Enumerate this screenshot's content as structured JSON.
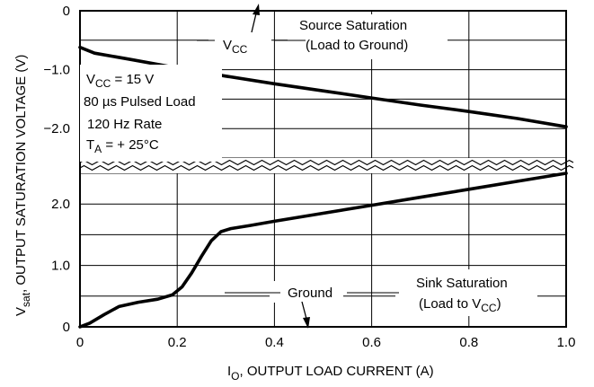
{
  "chart_data": {
    "type": "line",
    "xlabel": {
      "main": "I",
      "sub": "O",
      "rest": ", OUTPUT LOAD CURRENT (A)"
    },
    "ylabel": {
      "main": "V",
      "sub": "sat",
      "rest": ", OUTPUT SATURATION VOLTAGE (V)"
    },
    "xlim": [
      0,
      1.0
    ],
    "x_ticks": [
      "0",
      "0.2",
      "0.4",
      "0.6",
      "0.8",
      "1.0"
    ],
    "x_tick_values": [
      0,
      0.2,
      0.4,
      0.6,
      0.8,
      1.0
    ],
    "top_panel": {
      "ylim": [
        -2.5,
        0
      ],
      "y_ticks": [
        "0",
        "−1.0",
        "−2.0"
      ],
      "y_tick_values": [
        0,
        -1.0,
        -2.0
      ],
      "grid": true
    },
    "bottom_panel": {
      "ylim": [
        0,
        2.5
      ],
      "y_ticks": [
        "2.0",
        "1.0",
        "0"
      ],
      "y_tick_values": [
        2.0,
        1.0,
        0
      ],
      "grid": true
    },
    "series": [
      {
        "panel": "top",
        "x": [
          0,
          0.03,
          0.1,
          0.2,
          0.3,
          0.4,
          0.5,
          0.6,
          0.7,
          0.8,
          0.9,
          1.0
        ],
        "y": [
          -0.62,
          -0.72,
          -0.82,
          -0.97,
          -1.11,
          -1.24,
          -1.36,
          -1.48,
          -1.6,
          -1.71,
          -1.83,
          -1.97
        ]
      },
      {
        "panel": "bottom",
        "x": [
          0,
          0.02,
          0.05,
          0.08,
          0.12,
          0.16,
          0.19,
          0.21,
          0.23,
          0.25,
          0.27,
          0.29,
          0.31,
          0.35,
          0.4,
          0.5,
          0.6,
          0.7,
          0.8,
          0.9,
          1.0
        ],
        "y": [
          0,
          0.06,
          0.2,
          0.33,
          0.4,
          0.45,
          0.52,
          0.65,
          0.88,
          1.15,
          1.4,
          1.55,
          1.6,
          1.65,
          1.72,
          1.85,
          1.98,
          2.11,
          2.24,
          2.37,
          2.5
        ]
      }
    ],
    "annotations": {
      "vcc_arrow_label": {
        "main": "V",
        "sub": "CC"
      },
      "source_line1": "Source Saturation",
      "source_line2": "(Load to Ground)",
      "cond_line1_main": "V",
      "cond_line1_sub": "CC",
      "cond_line1_rest": " = 15 V",
      "cond_line2": "80 µs Pulsed Load",
      "cond_line3": "120 Hz Rate",
      "cond_line4_main": "T",
      "cond_line4_sub": "A",
      "cond_line4_rest": " = + 25°C",
      "ground_label": "Ground",
      "sink_line1": "Sink Saturation",
      "sink_line2_main": "(Load to V",
      "sink_line2_sub": "CC",
      "sink_line2_rest": ")"
    }
  }
}
